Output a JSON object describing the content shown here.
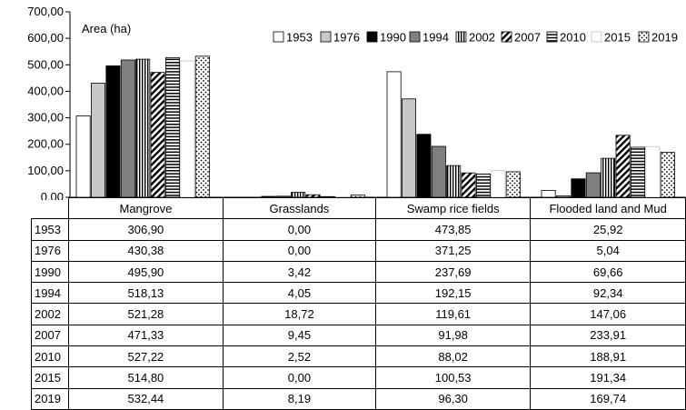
{
  "chart_data": {
    "type": "bar",
    "unit_label": "Area (ha)",
    "categories": [
      "Mangrove",
      "Grasslands",
      "Swamp rice fields",
      "Flooded land and Mud"
    ],
    "ylim": [
      0,
      700
    ],
    "yticks": [
      "0,00",
      "100,00",
      "200,00",
      "300,00",
      "400,00",
      "500,00",
      "600,00",
      "700,00"
    ],
    "grid": false,
    "legend_position": "top-right",
    "series": [
      {
        "name": "1953",
        "pattern": "white",
        "values": [
          306.9,
          0.0,
          473.85,
          25.92
        ]
      },
      {
        "name": "1976",
        "pattern": "light-gray",
        "values": [
          430.38,
          0.0,
          371.25,
          5.04
        ]
      },
      {
        "name": "1990",
        "pattern": "black",
        "values": [
          495.9,
          3.42,
          237.69,
          69.66
        ]
      },
      {
        "name": "1994",
        "pattern": "dark-gray",
        "values": [
          518.13,
          4.05,
          192.15,
          92.34
        ]
      },
      {
        "name": "2002",
        "pattern": "vertical-lines",
        "values": [
          521.28,
          18.72,
          119.61,
          147.06
        ]
      },
      {
        "name": "2007",
        "pattern": "diagonal-lines",
        "values": [
          471.33,
          9.45,
          91.98,
          233.91
        ]
      },
      {
        "name": "2010",
        "pattern": "horizontal-lines",
        "values": [
          527.22,
          2.52,
          88.02,
          188.91
        ]
      },
      {
        "name": "2015",
        "pattern": "white-light",
        "values": [
          514.8,
          0.0,
          100.53,
          191.34
        ]
      },
      {
        "name": "2019",
        "pattern": "dots",
        "values": [
          532.44,
          8.19,
          96.3,
          169.74
        ]
      }
    ],
    "table_rows": [
      [
        "1953",
        "306,90",
        "0,00",
        "473,85",
        "25,92"
      ],
      [
        "1976",
        "430,38",
        "0,00",
        "371,25",
        "5,04"
      ],
      [
        "1990",
        "495,90",
        "3,42",
        "237,69",
        "69,66"
      ],
      [
        "1994",
        "518,13",
        "4,05",
        "192,15",
        "92,34"
      ],
      [
        "2002",
        "521,28",
        "18,72",
        "119,61",
        "147,06"
      ],
      [
        "2007",
        "471,33",
        "9,45",
        "91,98",
        "233,91"
      ],
      [
        "2010",
        "527,22",
        "2,52",
        "88,02",
        "188,91"
      ],
      [
        "2015",
        "514,80",
        "0,00",
        "100,53",
        "191,34"
      ],
      [
        "2019",
        "532,44",
        "8,19",
        "96,30",
        "169,74"
      ]
    ]
  }
}
